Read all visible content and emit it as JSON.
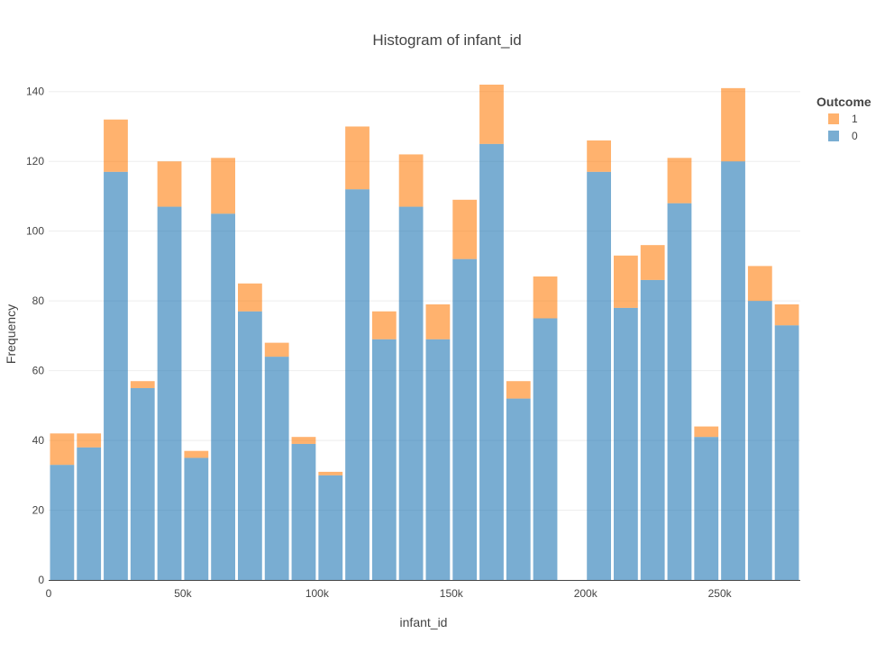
{
  "chart_data": {
    "type": "bar",
    "barmode": "stack",
    "title": "Histogram of infant_id",
    "xlabel": "infant_id",
    "ylabel": "Frequency",
    "xlim": [
      0,
      280000
    ],
    "ylim": [
      0,
      150
    ],
    "bin_width": 10000,
    "x_ticks": [
      {
        "value": 0,
        "label": "0"
      },
      {
        "value": 50000,
        "label": "50k"
      },
      {
        "value": 100000,
        "label": "100k"
      },
      {
        "value": 150000,
        "label": "150k"
      },
      {
        "value": 200000,
        "label": "200k"
      },
      {
        "value": 250000,
        "label": "250k"
      }
    ],
    "y_ticks": [
      {
        "value": 0,
        "label": "0"
      },
      {
        "value": 20,
        "label": "20"
      },
      {
        "value": 40,
        "label": "40"
      },
      {
        "value": 60,
        "label": "60"
      },
      {
        "value": 80,
        "label": "80"
      },
      {
        "value": 100,
        "label": "100"
      },
      {
        "value": 120,
        "label": "120"
      },
      {
        "value": 140,
        "label": "140"
      }
    ],
    "grid": true,
    "legend": {
      "title": "Outcome",
      "placement": "top-right",
      "entries": [
        {
          "label": "1",
          "series": "1"
        },
        {
          "label": "0",
          "series": "0"
        }
      ]
    },
    "x_bins": [
      0,
      10000,
      20000,
      30000,
      40000,
      50000,
      60000,
      70000,
      80000,
      90000,
      100000,
      110000,
      120000,
      130000,
      140000,
      150000,
      160000,
      170000,
      180000,
      190000,
      200000,
      210000,
      220000,
      230000,
      240000,
      250000,
      260000,
      270000
    ],
    "series": [
      {
        "name": "0",
        "color": "#1f77b4",
        "values": [
          33,
          38,
          117,
          55,
          107,
          35,
          105,
          77,
          64,
          39,
          30,
          112,
          69,
          107,
          69,
          92,
          125,
          52,
          75,
          0,
          117,
          78,
          86,
          108,
          41,
          120,
          80,
          73
        ]
      },
      {
        "name": "1",
        "color": "#ff7f0e",
        "values": [
          9,
          4,
          15,
          2,
          13,
          2,
          16,
          8,
          4,
          2,
          1,
          18,
          8,
          15,
          10,
          17,
          17,
          5,
          12,
          0,
          9,
          15,
          10,
          13,
          3,
          21,
          10,
          6
        ]
      }
    ]
  }
}
